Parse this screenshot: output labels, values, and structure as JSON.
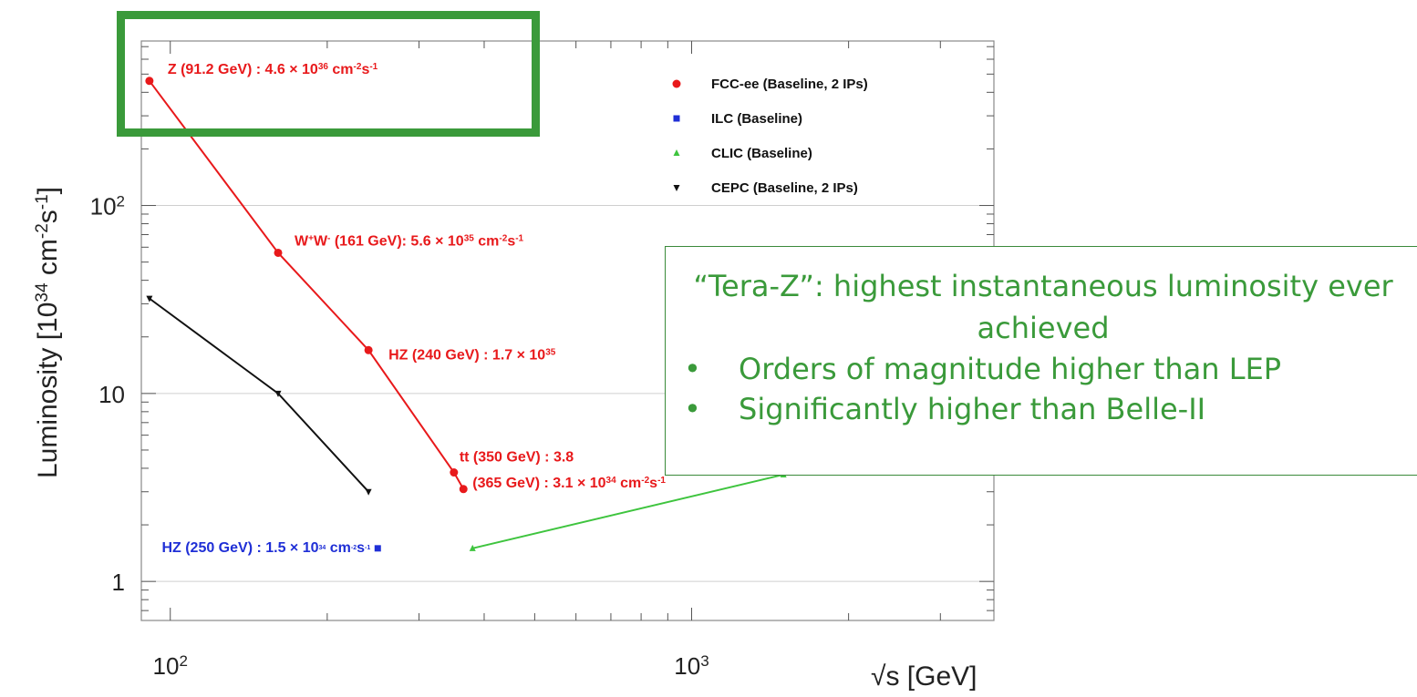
{
  "chart_data": {
    "type": "scatter",
    "title": "",
    "xlabel": "√s [GeV]",
    "ylabel": "Luminosity [10^34 cm^-2 s^-1]",
    "xscale": "log",
    "yscale": "log",
    "xlim": [
      88,
      3800
    ],
    "ylim": [
      0.62,
      750
    ],
    "xticks": [
      {
        "value": 100,
        "base": "10",
        "exp": "2"
      },
      {
        "value": 1000,
        "base": "10",
        "exp": "3"
      }
    ],
    "yticks": [
      {
        "value": 1,
        "label": "1"
      },
      {
        "value": 10,
        "label": "10"
      },
      {
        "value": 100,
        "base": "10",
        "exp": "2"
      }
    ],
    "grid": "horizontal",
    "legend_position": "top-right",
    "series": [
      {
        "name": "FCC-ee (Baseline, 2 IPs)",
        "color": "#e8191b",
        "marker": "circle",
        "x": [
          91.2,
          161,
          240,
          350,
          365
        ],
        "y": [
          460,
          56,
          17,
          3.8,
          3.1
        ]
      },
      {
        "name": "ILC (Baseline)",
        "color": "#1f2fd6",
        "marker": "square",
        "x": [
          250
        ],
        "y": [
          1.5
        ]
      },
      {
        "name": "CLIC (Baseline)",
        "color": "#3ec43e",
        "marker": "triangle",
        "x": [
          380,
          1500
        ],
        "y": [
          1.5,
          3.7
        ]
      },
      {
        "name": "CEPC (Baseline, 2 IPs)",
        "color": "#111111",
        "marker": "triangle-down",
        "x": [
          91.2,
          161,
          240
        ],
        "y": [
          32,
          10,
          3
        ]
      }
    ],
    "annotations": [
      {
        "id": "z",
        "color": "#e8191b",
        "parts": [
          "Z (91.2 GeV) : 4.6 × 10",
          "36",
          " cm",
          "-2",
          "s",
          "-1"
        ]
      },
      {
        "id": "ww",
        "color": "#e8191b",
        "parts": [
          "W",
          "+",
          "W",
          "-",
          " (161 GeV): 5.6 × 10",
          "35",
          " cm",
          "-2",
          "s",
          "-1"
        ]
      },
      {
        "id": "hz240",
        "color": "#e8191b",
        "parts": [
          "HZ (240 GeV) : 1.7 × 10",
          "35"
        ]
      },
      {
        "id": "tt350",
        "color": "#e8191b",
        "parts": [
          "tt (350 GeV) : 3.8"
        ]
      },
      {
        "id": "tt365",
        "color": "#e8191b",
        "parts": [
          "(365 GeV) : 3.1 × 10",
          "34",
          " cm",
          "-2",
          "s",
          "-1"
        ]
      },
      {
        "id": "hz250",
        "color": "#1f2fd6",
        "parts": [
          "HZ (250 GeV) : 1.5 × 10",
          "34",
          " cm",
          "-2",
          "s",
          "-1"
        ]
      }
    ]
  },
  "callout": {
    "title": "“Tera-Z”: highest instantaneous luminosity ever achieved",
    "bullets": [
      "Orders of magnitude higher than LEP",
      "Significantly higher than Belle-II"
    ]
  },
  "colors": {
    "highlight": "#3a9a3a",
    "callout_text": "#3a9a3a"
  }
}
